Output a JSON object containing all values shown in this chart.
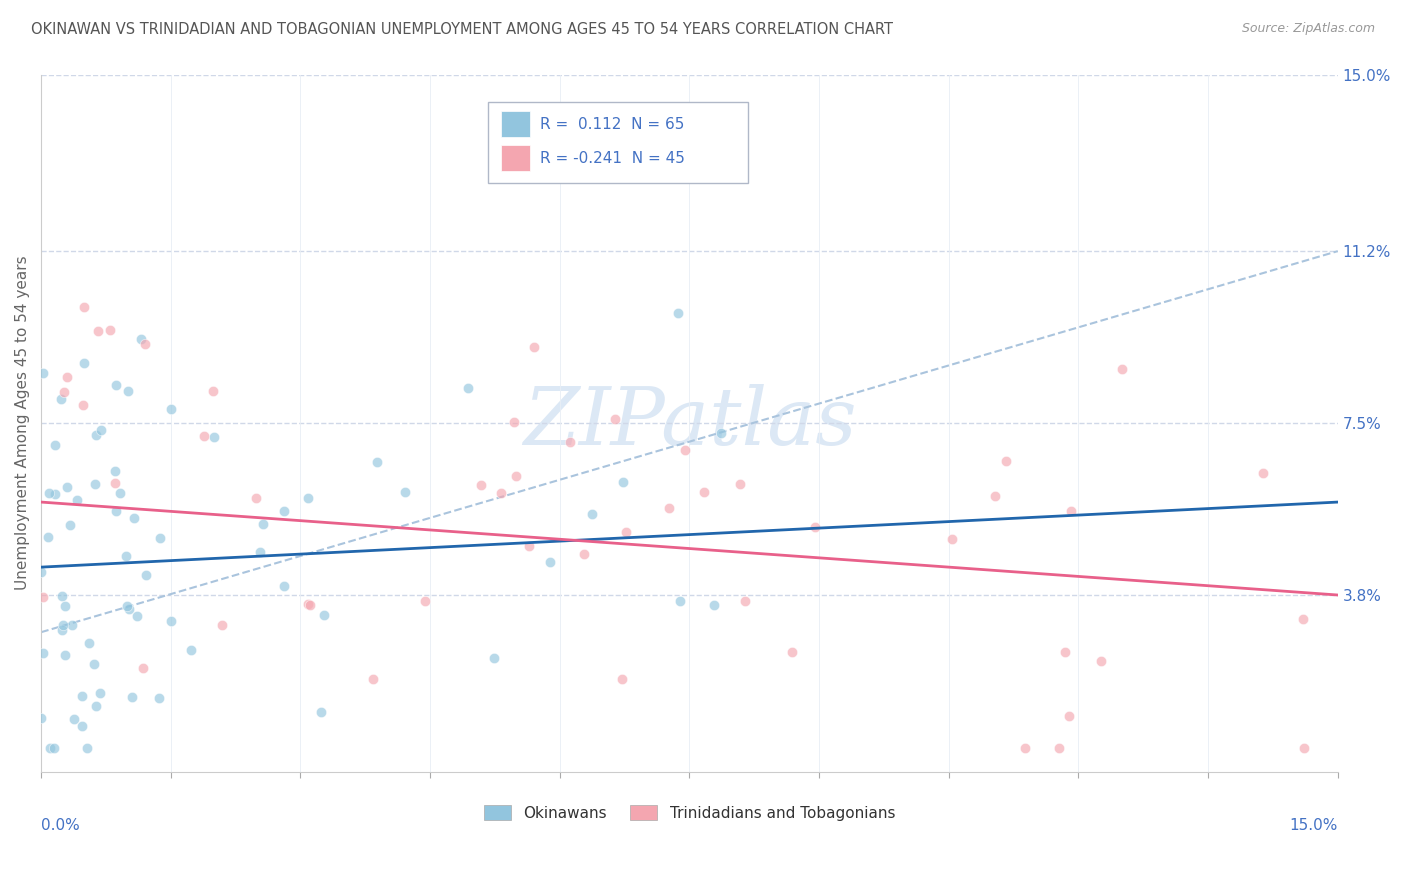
{
  "title": "OKINAWAN VS TRINIDADIAN AND TOBAGONIAN UNEMPLOYMENT AMONG AGES 45 TO 54 YEARS CORRELATION CHART",
  "source": "Source: ZipAtlas.com",
  "ylabel": "Unemployment Among Ages 45 to 54 years",
  "xlim": [
    0.0,
    0.15
  ],
  "ylim": [
    0.0,
    0.15
  ],
  "ytick_labels_right": [
    "15.0%",
    "11.2%",
    "7.5%",
    "3.8%"
  ],
  "ytick_positions_right": [
    0.15,
    0.112,
    0.075,
    0.038
  ],
  "legend_blue_r": "0.112",
  "legend_blue_n": "65",
  "legend_pink_r": "-0.241",
  "legend_pink_n": "45",
  "blue_color": "#92c5de",
  "pink_color": "#f4a6b0",
  "blue_line_color": "#2166ac",
  "pink_line_color": "#e8608a",
  "dashed_line_color": "#aac4dd",
  "grid_color": "#d0d8e8",
  "title_color": "#555555",
  "axis_label_color": "#666666",
  "tick_label_color": "#4472c4",
  "watermark_color": "#dce8f5",
  "blue_line_x0": 0.0,
  "blue_line_y0": 0.044,
  "blue_line_x1": 0.15,
  "blue_line_y1": 0.058,
  "pink_line_x0": 0.0,
  "pink_line_y0": 0.058,
  "pink_line_x1": 0.15,
  "pink_line_y1": 0.038,
  "dashed_line_x0": 0.0,
  "dashed_line_y0": 0.03,
  "dashed_line_x1": 0.15,
  "dashed_line_y1": 0.112
}
